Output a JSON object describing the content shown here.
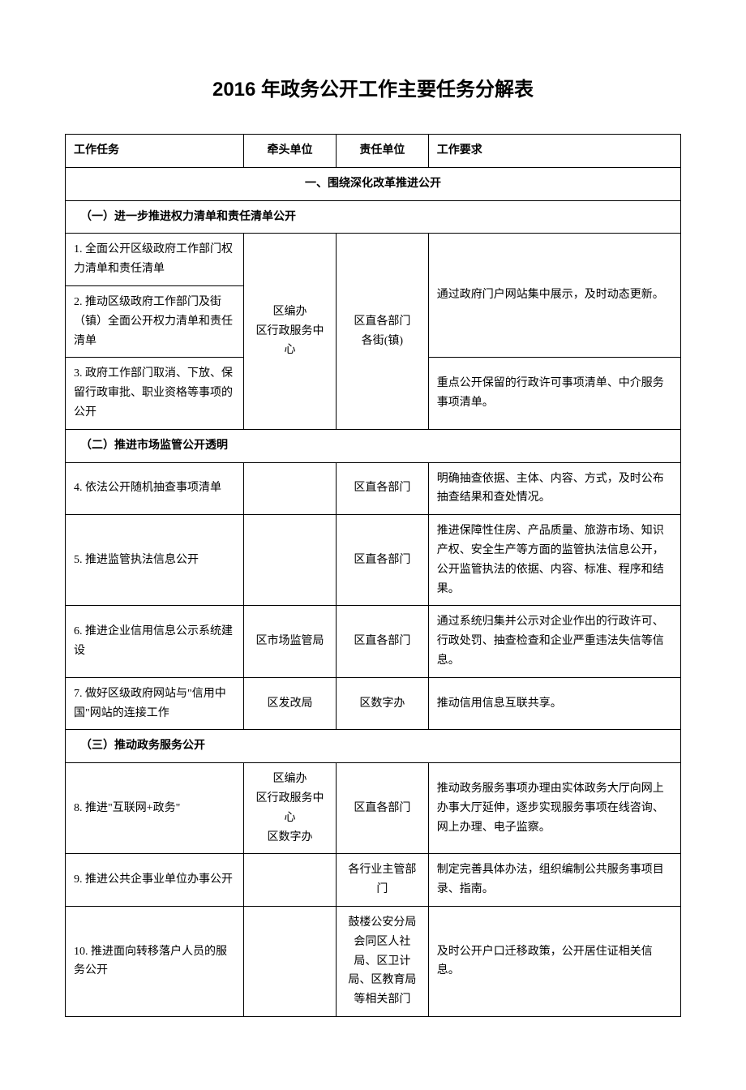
{
  "title": "2016 年政务公开工作主要任务分解表",
  "headers": {
    "task": "工作任务",
    "lead": "牵头单位",
    "resp": "责任单位",
    "req": "工作要求"
  },
  "section1": {
    "title": "一、围绕深化改革推进公开",
    "sub1": {
      "title": "（一）进一步推进权力清单和责任清单公开",
      "r1_task": "1. 全面公开区级政府工作部门权力清单和责任清单",
      "r2_task": "2. 推动区级政府工作部门及街（镇）全面公开权力清单和责任清单",
      "r3_task": "3. 政府工作部门取消、下放、保留行政审批、职业资格等事项的公开",
      "lead": "区编办\n区行政服务中心",
      "resp": "区直各部门\n各街(镇)",
      "req12": "通过政府门户网站集中展示，及时动态更新。",
      "req3": "重点公开保留的行政许可事项清单、中介服务事项清单。"
    },
    "sub2": {
      "title": "（二）推进市场监管公开透明",
      "r4_task": "4. 依法公开随机抽查事项清单",
      "r4_lead": "",
      "r4_resp": "区直各部门",
      "r4_req": "明确抽查依据、主体、内容、方式，及时公布抽查结果和查处情况。",
      "r5_task": "5. 推进监管执法信息公开",
      "r5_lead": "",
      "r5_resp": "区直各部门",
      "r5_req": "推进保障性住房、产品质量、旅游市场、知识产权、安全生产等方面的监管执法信息公开，公开监管执法的依据、内容、标准、程序和结果。",
      "r6_task": "6. 推进企业信用信息公示系统建设",
      "r6_lead": "区市场监管局",
      "r6_resp": "区直各部门",
      "r6_req": "通过系统归集并公示对企业作出的行政许可、行政处罚、抽查检查和企业严重违法失信等信息。",
      "r7_task": "7. 做好区级政府网站与\"信用中国\"网站的连接工作",
      "r7_lead": "区发改局",
      "r7_resp": "区数字办",
      "r7_req": "推动信用信息互联共享。"
    },
    "sub3": {
      "title": "（三）推动政务服务公开",
      "r8_task": "8. 推进\"互联网+政务\"",
      "r8_lead": "区编办\n区行政服务中心\n区数字办",
      "r8_resp": "区直各部门",
      "r8_req": "推动政务服务事项办理由实体政务大厅向网上办事大厅延伸，逐步实现服务事项在线咨询、网上办理、电子监察。",
      "r9_task": "9. 推进公共企事业单位办事公开",
      "r9_lead": "",
      "r9_resp": "各行业主管部门",
      "r9_req": "制定完善具体办法，组织编制公共服务事项目录、指南。",
      "r10_task": "10. 推进面向转移落户人员的服务公开",
      "r10_lead": "",
      "r10_resp": "鼓楼公安分局会同区人社局、区卫计局、区教育局等相关部门",
      "r10_req": "及时公开户口迁移政策，公开居住证相关信息。"
    }
  }
}
